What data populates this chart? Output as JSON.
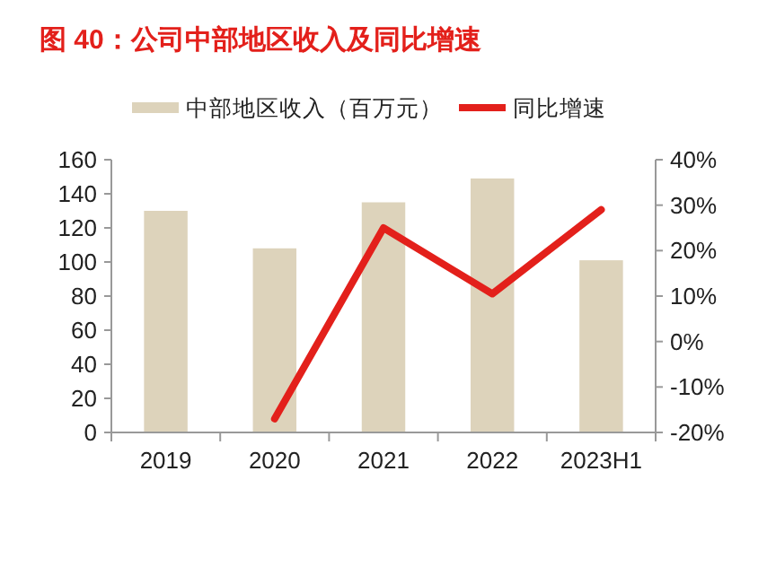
{
  "chart_data": {
    "type": "bar",
    "title": "图 40：公司中部地区收入及同比增速",
    "categories": [
      "2019",
      "2020",
      "2021",
      "2022",
      "2023H1"
    ],
    "series": [
      {
        "name": "中部地区收入（百万元）",
        "color": "#ddd3bb",
        "values": [
          130,
          108,
          135,
          149,
          101
        ]
      },
      {
        "name": "同比增速",
        "type": "line",
        "axis": "y2",
        "color": "#e3201b",
        "values": [
          null,
          -17,
          25,
          10.5,
          29
        ]
      }
    ],
    "ylim": [
      0,
      160
    ],
    "yticks": [
      0,
      20,
      40,
      60,
      80,
      100,
      120,
      140,
      160
    ],
    "y2lim": [
      -20,
      40
    ],
    "y2ticks": [
      {
        "value": -20,
        "label": "-20%"
      },
      {
        "value": -10,
        "label": "-10%"
      },
      {
        "value": 0,
        "label": "0%"
      },
      {
        "value": 10,
        "label": "10%"
      },
      {
        "value": 20,
        "label": "20%"
      },
      {
        "value": 30,
        "label": "30%"
      },
      {
        "value": 40,
        "label": "40%"
      }
    ],
    "legend": "top",
    "grid": false
  }
}
